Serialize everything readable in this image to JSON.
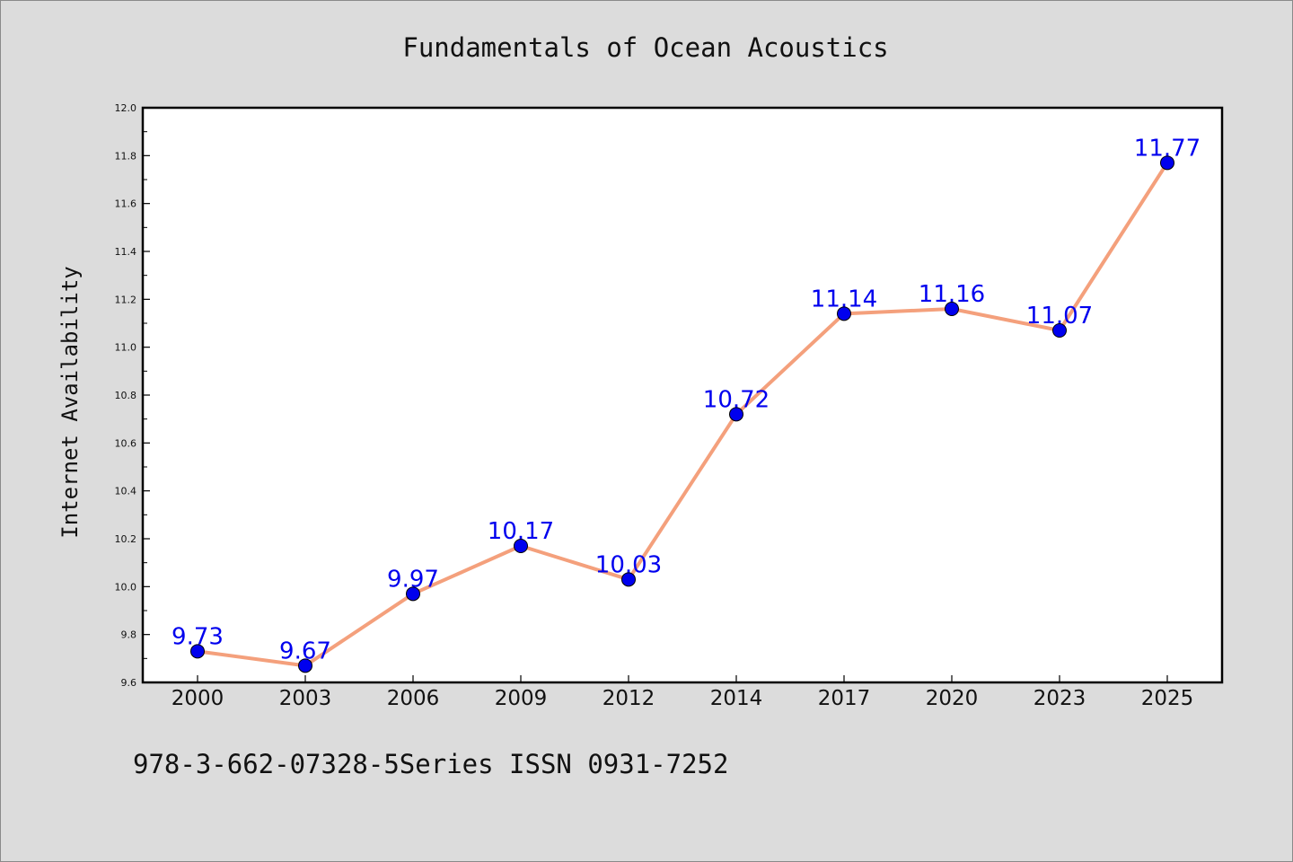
{
  "footer": {
    "text": "978-3-662-07328-5Series ISSN 0931-7252"
  },
  "chart_data": {
    "type": "line",
    "title": "Fundamentals of Ocean Acoustics",
    "xlabel": "",
    "ylabel": "Internet Availability",
    "categories": [
      "2000",
      "2003",
      "2006",
      "2009",
      "2012",
      "2014",
      "2017",
      "2020",
      "2023",
      "2025"
    ],
    "series": [
      {
        "values": [
          9.73,
          9.67,
          9.97,
          10.17,
          10.03,
          10.72,
          11.14,
          11.16,
          11.07,
          11.77
        ],
        "data_labels": [
          "9.73",
          "9.67",
          "9.97",
          "10.17",
          "10.03",
          "10.72",
          "11.14",
          "11.16",
          "11.07",
          "11.77"
        ],
        "line_color": "#f4a07c",
        "marker_color": "#0000ee",
        "label_color": "#0000ee"
      }
    ],
    "ylim": [
      9.6,
      12.0
    ],
    "yticks": [
      "9.6",
      "9.8",
      "10.0",
      "10.2",
      "10.4",
      "10.6",
      "10.8",
      "11.0",
      "11.2",
      "11.4",
      "11.6",
      "11.8",
      "12.0"
    ],
    "grid": false,
    "legend": "none",
    "background_color": "#dcdcdc",
    "plot_background": "#ffffff"
  }
}
